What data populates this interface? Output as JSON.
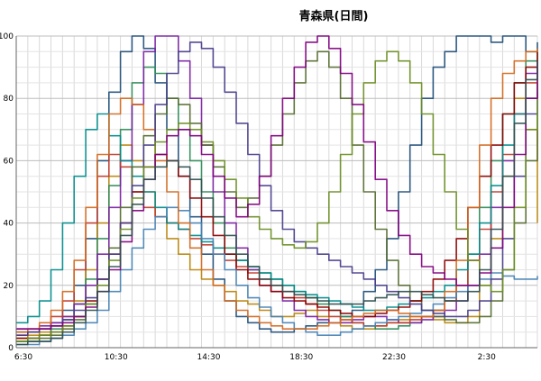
{
  "chart_data": {
    "type": "line",
    "title": "青森県(日間)",
    "xlabel": "",
    "ylabel": "",
    "ylim": [
      0,
      100
    ],
    "y_ticks": [
      0,
      20,
      40,
      60,
      80,
      100
    ],
    "x_ticks": [
      "6:30",
      "10:30",
      "14:30",
      "18:30",
      "22:30",
      "2:30"
    ],
    "x_tick_positions": [
      0,
      4,
      8,
      12,
      16,
      20
    ],
    "x_range": [
      0,
      22.5
    ],
    "grid": true,
    "legend": "none",
    "series": [
      {
        "color": "#1f4e79",
        "values": [
          5,
          5,
          6,
          8,
          12,
          20,
          35,
          60,
          82,
          95,
          100,
          96,
          85,
          70,
          55,
          42,
          30,
          22,
          15,
          10,
          8,
          6,
          5,
          5,
          6,
          7,
          8,
          8,
          10,
          12,
          18,
          25,
          35,
          50,
          65,
          80,
          90,
          95,
          100,
          100,
          100,
          98,
          100,
          100,
          95,
          98
        ]
      },
      {
        "color": "#b8860b",
        "values": [
          3,
          4,
          5,
          7,
          10,
          15,
          25,
          40,
          55,
          65,
          60,
          50,
          42,
          35,
          30,
          25,
          22,
          20,
          18,
          15,
          14,
          12,
          10,
          10,
          11,
          12,
          10,
          8,
          7,
          6,
          6,
          7,
          8,
          9,
          10,
          10,
          9,
          8,
          8,
          10,
          20,
          35,
          55,
          80,
          70,
          40
        ]
      },
      {
        "color": "#2e8b57",
        "values": [
          2,
          3,
          4,
          6,
          9,
          14,
          22,
          35,
          52,
          70,
          85,
          90,
          88,
          80,
          70,
          60,
          50,
          40,
          32,
          28,
          25,
          24,
          22,
          20,
          18,
          16,
          14,
          12,
          10,
          8,
          7,
          6,
          6,
          7,
          8,
          10,
          12,
          15,
          20,
          30,
          45,
          60,
          75,
          85,
          92,
          95
        ]
      },
      {
        "color": "#7b1fa2",
        "values": [
          6,
          6,
          7,
          8,
          10,
          14,
          20,
          30,
          45,
          60,
          78,
          95,
          100,
          100,
          92,
          80,
          65,
          50,
          40,
          32,
          25,
          20,
          18,
          15,
          12,
          10,
          9,
          8,
          8,
          9,
          10,
          10,
          9,
          8,
          8,
          9,
          10,
          12,
          15,
          20,
          30,
          45,
          60,
          75,
          88,
          90
        ]
      },
      {
        "color": "#c0392b",
        "values": [
          4,
          5,
          6,
          10,
          15,
          25,
          40,
          55,
          62,
          58,
          50,
          45,
          42,
          40,
          38,
          35,
          33,
          30,
          28,
          26,
          24,
          22,
          20,
          18,
          16,
          14,
          12,
          10,
          9,
          8,
          7,
          7,
          8,
          8,
          9,
          10,
          12,
          15,
          20,
          28,
          38,
          50,
          62,
          75,
          85,
          90
        ]
      },
      {
        "color": "#008b8b",
        "values": [
          8,
          10,
          15,
          25,
          40,
          55,
          70,
          75,
          68,
          60,
          55,
          50,
          45,
          40,
          38,
          36,
          34,
          32,
          30,
          28,
          26,
          24,
          22,
          20,
          18,
          17,
          16,
          15,
          14,
          13,
          12,
          12,
          13,
          14,
          15,
          16,
          18,
          20,
          25,
          30,
          40,
          52,
          65,
          75,
          80,
          82
        ]
      },
      {
        "color": "#556b2f",
        "values": [
          2,
          2,
          3,
          4,
          6,
          9,
          14,
          22,
          32,
          45,
          58,
          68,
          75,
          80,
          78,
          72,
          65,
          58,
          50,
          45,
          48,
          55,
          65,
          75,
          85,
          92,
          95,
          90,
          80,
          65,
          50,
          38,
          28,
          20,
          15,
          12,
          10,
          9,
          8,
          8,
          10,
          15,
          25,
          40,
          60,
          75
        ]
      },
      {
        "color": "#8b0000",
        "values": [
          3,
          3,
          4,
          5,
          7,
          10,
          15,
          22,
          30,
          40,
          50,
          58,
          62,
          60,
          55,
          48,
          42,
          36,
          30,
          25,
          22,
          20,
          18,
          16,
          15,
          14,
          13,
          12,
          11,
          10,
          10,
          11,
          12,
          13,
          15,
          18,
          22,
          28,
          35,
          45,
          55,
          65,
          75,
          85,
          90,
          95
        ]
      },
      {
        "color": "#4682b4",
        "values": [
          1,
          1,
          2,
          3,
          4,
          6,
          8,
          12,
          18,
          25,
          32,
          38,
          42,
          45,
          44,
          40,
          35,
          30,
          25,
          20,
          16,
          13,
          10,
          8,
          6,
          5,
          4,
          4,
          5,
          6,
          7,
          8,
          9,
          10,
          11,
          12,
          14,
          16,
          18,
          20,
          22,
          24,
          23,
          22,
          22,
          23
        ]
      },
      {
        "color": "#d2691e",
        "values": [
          5,
          6,
          8,
          12,
          18,
          28,
          45,
          62,
          75,
          80,
          78,
          70,
          60,
          50,
          40,
          32,
          25,
          20,
          15,
          12,
          10,
          8,
          7,
          6,
          6,
          6,
          7,
          8,
          9,
          10,
          11,
          12,
          12,
          11,
          10,
          10,
          12,
          18,
          28,
          45,
          65,
          80,
          88,
          92,
          95,
          96
        ]
      },
      {
        "color": "#483d8b",
        "values": [
          4,
          5,
          6,
          7,
          9,
          12,
          16,
          22,
          30,
          40,
          52,
          65,
          78,
          88,
          95,
          98,
          96,
          90,
          82,
          72,
          62,
          52,
          44,
          38,
          34,
          32,
          30,
          28,
          26,
          24,
          22,
          20,
          18,
          16,
          14,
          12,
          11,
          10,
          10,
          12,
          15,
          22,
          35,
          55,
          75,
          85
        ]
      },
      {
        "color": "#6b8e23",
        "values": [
          2,
          3,
          4,
          5,
          7,
          10,
          14,
          20,
          28,
          38,
          48,
          58,
          66,
          70,
          72,
          70,
          66,
          60,
          54,
          48,
          42,
          38,
          35,
          33,
          32,
          34,
          40,
          50,
          62,
          75,
          85,
          92,
          95,
          92,
          85,
          75,
          62,
          50,
          38,
          28,
          20,
          18,
          25,
          45,
          70,
          85
        ]
      },
      {
        "color": "#800080",
        "values": [
          6,
          6,
          6,
          7,
          8,
          10,
          13,
          18,
          25,
          34,
          44,
          54,
          62,
          68,
          70,
          68,
          62,
          55,
          48,
          42,
          46,
          55,
          68,
          80,
          90,
          98,
          100,
          96,
          88,
          78,
          66,
          54,
          44,
          36,
          30,
          26,
          24,
          22,
          20,
          20,
          24,
          32,
          45,
          62,
          80,
          92
        ]
      },
      {
        "color": "#2f4f4f",
        "values": [
          1,
          2,
          2,
          3,
          5,
          8,
          12,
          18,
          26,
          36,
          46,
          54,
          58,
          60,
          58,
          54,
          48,
          42,
          36,
          30,
          26,
          22,
          20,
          18,
          17,
          16,
          15,
          14,
          14,
          14,
          15,
          16,
          17,
          18,
          18,
          17,
          16,
          15,
          15,
          18,
          25,
          38,
          55,
          72,
          86,
          92
        ]
      }
    ]
  }
}
